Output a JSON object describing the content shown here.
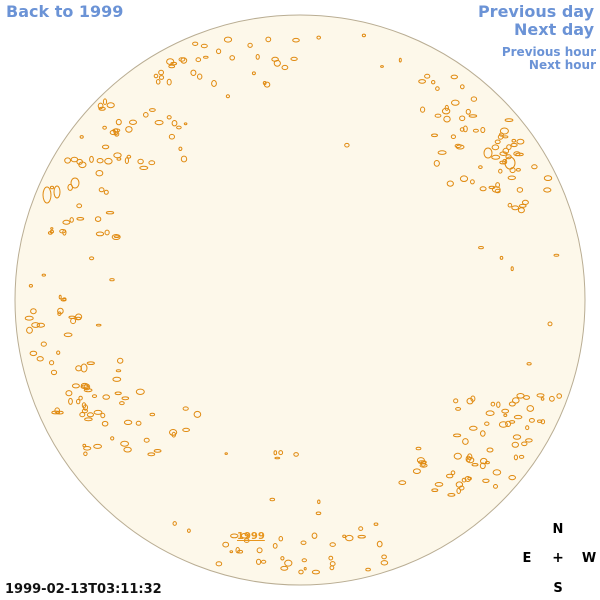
{
  "navigation": {
    "back_label": "Back to 1999",
    "previous_day_label": "Previous day",
    "next_day_label": "Next day",
    "previous_hour_label": "Previous hour",
    "next_hour_label": "Next hour"
  },
  "sun_disk": {
    "year_label": "1999",
    "disk_color": "#fdf8ea",
    "limb_color": "#b9ad93",
    "contour_color": "#e08a10"
  },
  "timestamp": "1999-02-13T03:11:32",
  "compass": {
    "north": "N",
    "east": "E",
    "center": "+",
    "west": "W",
    "south": "S"
  },
  "colors": {
    "link": "#6b93d6",
    "accent": "#e8961e"
  }
}
